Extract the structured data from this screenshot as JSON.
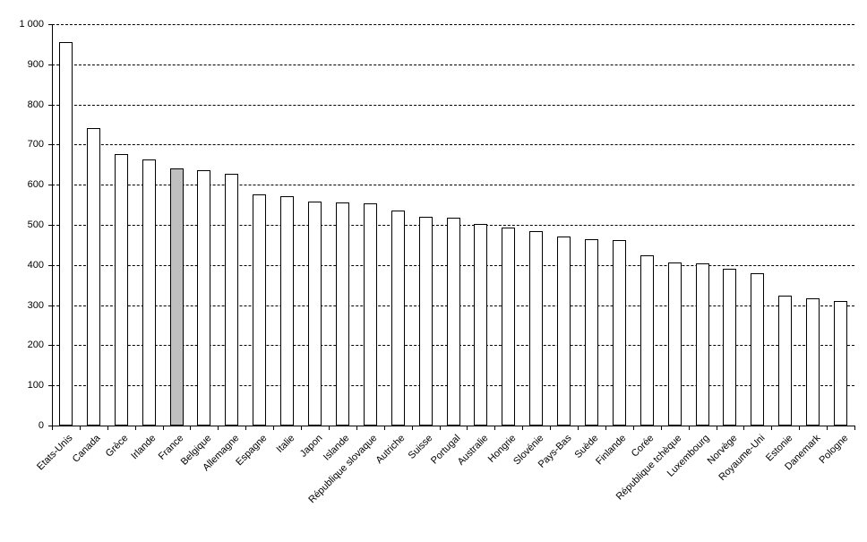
{
  "chart_data": {
    "type": "bar",
    "title": "",
    "xlabel": "",
    "ylabel": "",
    "categories": [
      "Etats-Unis",
      "Canada",
      "Grèce",
      "Irlande",
      "France",
      "Belgique",
      "Allemagne",
      "Espagne",
      "Italie",
      "Japon",
      "Islande",
      "République slovaque",
      "Autriche",
      "Suisse",
      "Portugal",
      "Australie",
      "Hongrie",
      "Slovénie",
      "Pays-Bas",
      "Suède",
      "Finlande",
      "Corée",
      "République tchèque",
      "Luxembourg",
      "Norvège",
      "Royaume-Uni",
      "Estonie",
      "Danemark",
      "Pologne"
    ],
    "values": [
      955,
      741,
      677,
      663,
      640,
      637,
      627,
      577,
      572,
      557,
      555,
      554,
      535,
      519,
      517,
      503,
      493,
      484,
      470,
      465,
      462,
      423,
      406,
      404,
      390,
      380,
      324,
      317,
      310
    ],
    "highlighted_category": "France",
    "highlight_index": 4,
    "ylim": [
      0,
      1000
    ],
    "ytick_step": 100,
    "ytick_labels": [
      "0",
      "100",
      "200",
      "300",
      "400",
      "500",
      "600",
      "700",
      "800",
      "900",
      "1 000"
    ],
    "grid": "horizontal-dashed",
    "legend_position": "none",
    "colors": {
      "bar_fill": "#FFFFFF",
      "highlight_fill": "#C0C0C0",
      "bar_border": "#000000",
      "axis_color": "#000000",
      "gridline_color": "#000000",
      "text_color": "#000000",
      "background": "#FFFFFF"
    }
  }
}
